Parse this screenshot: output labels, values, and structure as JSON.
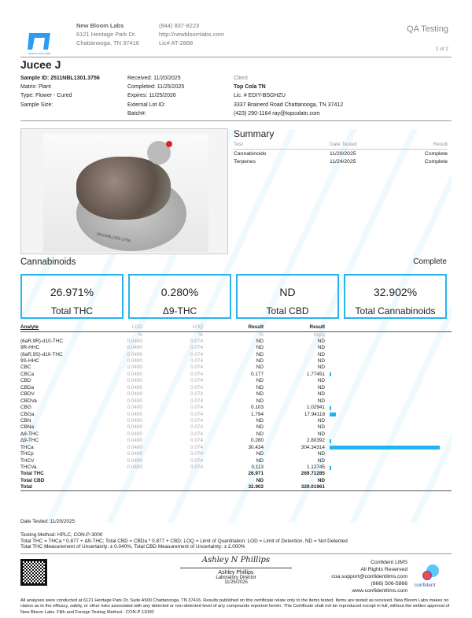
{
  "lab": {
    "logo_text": "NEW BLOOM LABS",
    "name": "New Bloom Labs",
    "address1": "6121 Heritage Park Dr.",
    "address2": "Chattanooga, TN 37416",
    "phone": "(844) 837-8223",
    "website": "http://newbloomlabs.com",
    "license": "Lic# AT-2868"
  },
  "header": {
    "title": "QA Testing",
    "page": "1 of 2"
  },
  "sample": {
    "name": "Jucee J",
    "id": "Sample ID: 2511NBL1301.3756",
    "matrix": "Matrix: Plant",
    "type": "Type: Flower - Cured",
    "size": "Sample Size:",
    "received": "Received: 11/20/2025",
    "completed": "Completed: 11/25/2025",
    "expires": "Expires: 11/25/2026",
    "lot": "External Lot ID:",
    "batch": "Batch#:"
  },
  "client": {
    "label": "Client",
    "name": "Top Cola TN",
    "license": "Lic. # EDIY-BSGHZU",
    "address": "3337 Brainerd Road Chattanooga, TN 37412",
    "contact": "(423) 290-1164 ray@topcolatn.com"
  },
  "photo": {
    "label_text": "2511NBL1301.3756"
  },
  "summary": {
    "title": "Summary",
    "headers": [
      "Test",
      "Date Tested",
      "Result"
    ],
    "rows": [
      [
        "Cannabinoids",
        "11/20/2025",
        "Complete"
      ],
      [
        "Terpenes",
        "11/24/2025",
        "Complete"
      ]
    ]
  },
  "cannabinoids": {
    "title": "Cannabinoids",
    "status": "Complete",
    "boxes": [
      {
        "value": "26.971%",
        "label": "Total THC"
      },
      {
        "value": "0.280%",
        "label": "Δ9-THC"
      },
      {
        "value": "ND",
        "label": "Total CBD"
      },
      {
        "value": "32.902%",
        "label": "Total Cannabinoids"
      }
    ],
    "headers": [
      "Analyte",
      "LOD",
      "LOQ",
      "Result",
      "Result"
    ],
    "units": [
      "",
      "%",
      "%",
      "%",
      "mg/g"
    ],
    "bar_max": 304.34314,
    "rows": [
      [
        "(6aR,9R)-d10-THC",
        "0.0490",
        "0.074",
        "ND",
        "ND"
      ],
      [
        "9R-HHC",
        "0.0490",
        "0.074",
        "ND",
        "ND"
      ],
      [
        "(6aR,9S)-d10-THC",
        "0.0490",
        "0.074",
        "ND",
        "ND"
      ],
      [
        "9S-HHC",
        "0.0490",
        "0.074",
        "ND",
        "ND"
      ],
      [
        "CBC",
        "0.0490",
        "0.074",
        "ND",
        "ND"
      ],
      [
        "CBCa",
        "0.0490",
        "0.074",
        "0.177",
        "1.77451"
      ],
      [
        "CBD",
        "0.0490",
        "0.074",
        "ND",
        "ND"
      ],
      [
        "CBDa",
        "0.0490",
        "0.074",
        "ND",
        "ND"
      ],
      [
        "CBDV",
        "0.0490",
        "0.074",
        "ND",
        "ND"
      ],
      [
        "CBDVa",
        "0.0490",
        "0.074",
        "ND",
        "ND"
      ],
      [
        "CBG",
        "0.0490",
        "0.074",
        "0.103",
        "1.02941"
      ],
      [
        "CBGa",
        "0.0490",
        "0.074",
        "1.794",
        "17.94118"
      ],
      [
        "CBN",
        "0.0490",
        "0.074",
        "ND",
        "ND"
      ],
      [
        "CBNa",
        "0.0490",
        "0.074",
        "ND",
        "ND"
      ],
      [
        "Δ8-THC",
        "0.0490",
        "0.074",
        "ND",
        "ND"
      ],
      [
        "Δ9-THC",
        "0.0490",
        "0.074",
        "0.280",
        "2.80392"
      ],
      [
        "THCa",
        "0.0490",
        "0.074",
        "30.434",
        "304.34314"
      ],
      [
        "THCp",
        "0.0490",
        "0.074",
        "ND",
        "ND"
      ],
      [
        "THCV",
        "0.0490",
        "0.074",
        "ND",
        "ND"
      ],
      [
        "THCVa",
        "0.0490",
        "0.074",
        "0.113",
        "1.12745"
      ]
    ],
    "totals": [
      [
        "Total THC",
        "26.971",
        "269.71285"
      ],
      [
        "Total CBD",
        "ND",
        "ND"
      ],
      [
        "Total",
        "32.902",
        "329.01961"
      ]
    ],
    "date_tested": "Date Tested: 11/20/2025"
  },
  "notes": [
    "Testing Method: HPLC, CON-P-3000",
    "Total THC = THCa * 0.877 + Δ9-THC; Total CBD = CBDa * 0.877 + CBD; LOQ = Limit of Quantitation; LOD = Limit of Detection, ND = Not Detected",
    "Total THC Measurement of Uncertainty: ± 0.040%, Total CBD Measurement of Uncertainty: ± 2.000%"
  ],
  "signature": {
    "script": "Ashley N Phillips",
    "name": "Ashley Phillips",
    "title": "Laboratory Director",
    "date": "11/25/2025"
  },
  "lims": {
    "lines": [
      "Confident LIMS",
      "All Rights Reserved",
      "coa.support@confidentlims.com",
      "(866) 506-5866",
      "www.confidentlims.com"
    ],
    "logo_text": "confident"
  },
  "disclaimer": "All analyses were conducted at 6121 Heritage Park Dr, Suite A500 Chattanooga, TN 37416. Results published on this certificate relate only to the items tested. Items are tested as received. New Bloom Labs makes no claims as to the efficacy, safety, or other risks associated with any detected or non-detected level of any compounds reported herein. This Certificate shall not be reproduced except in full, without the written approval of New Bloom Labs. Filth and Foreign Testing Method - CON-P-11000",
  "colors": {
    "accent": "#1fb6f0"
  }
}
